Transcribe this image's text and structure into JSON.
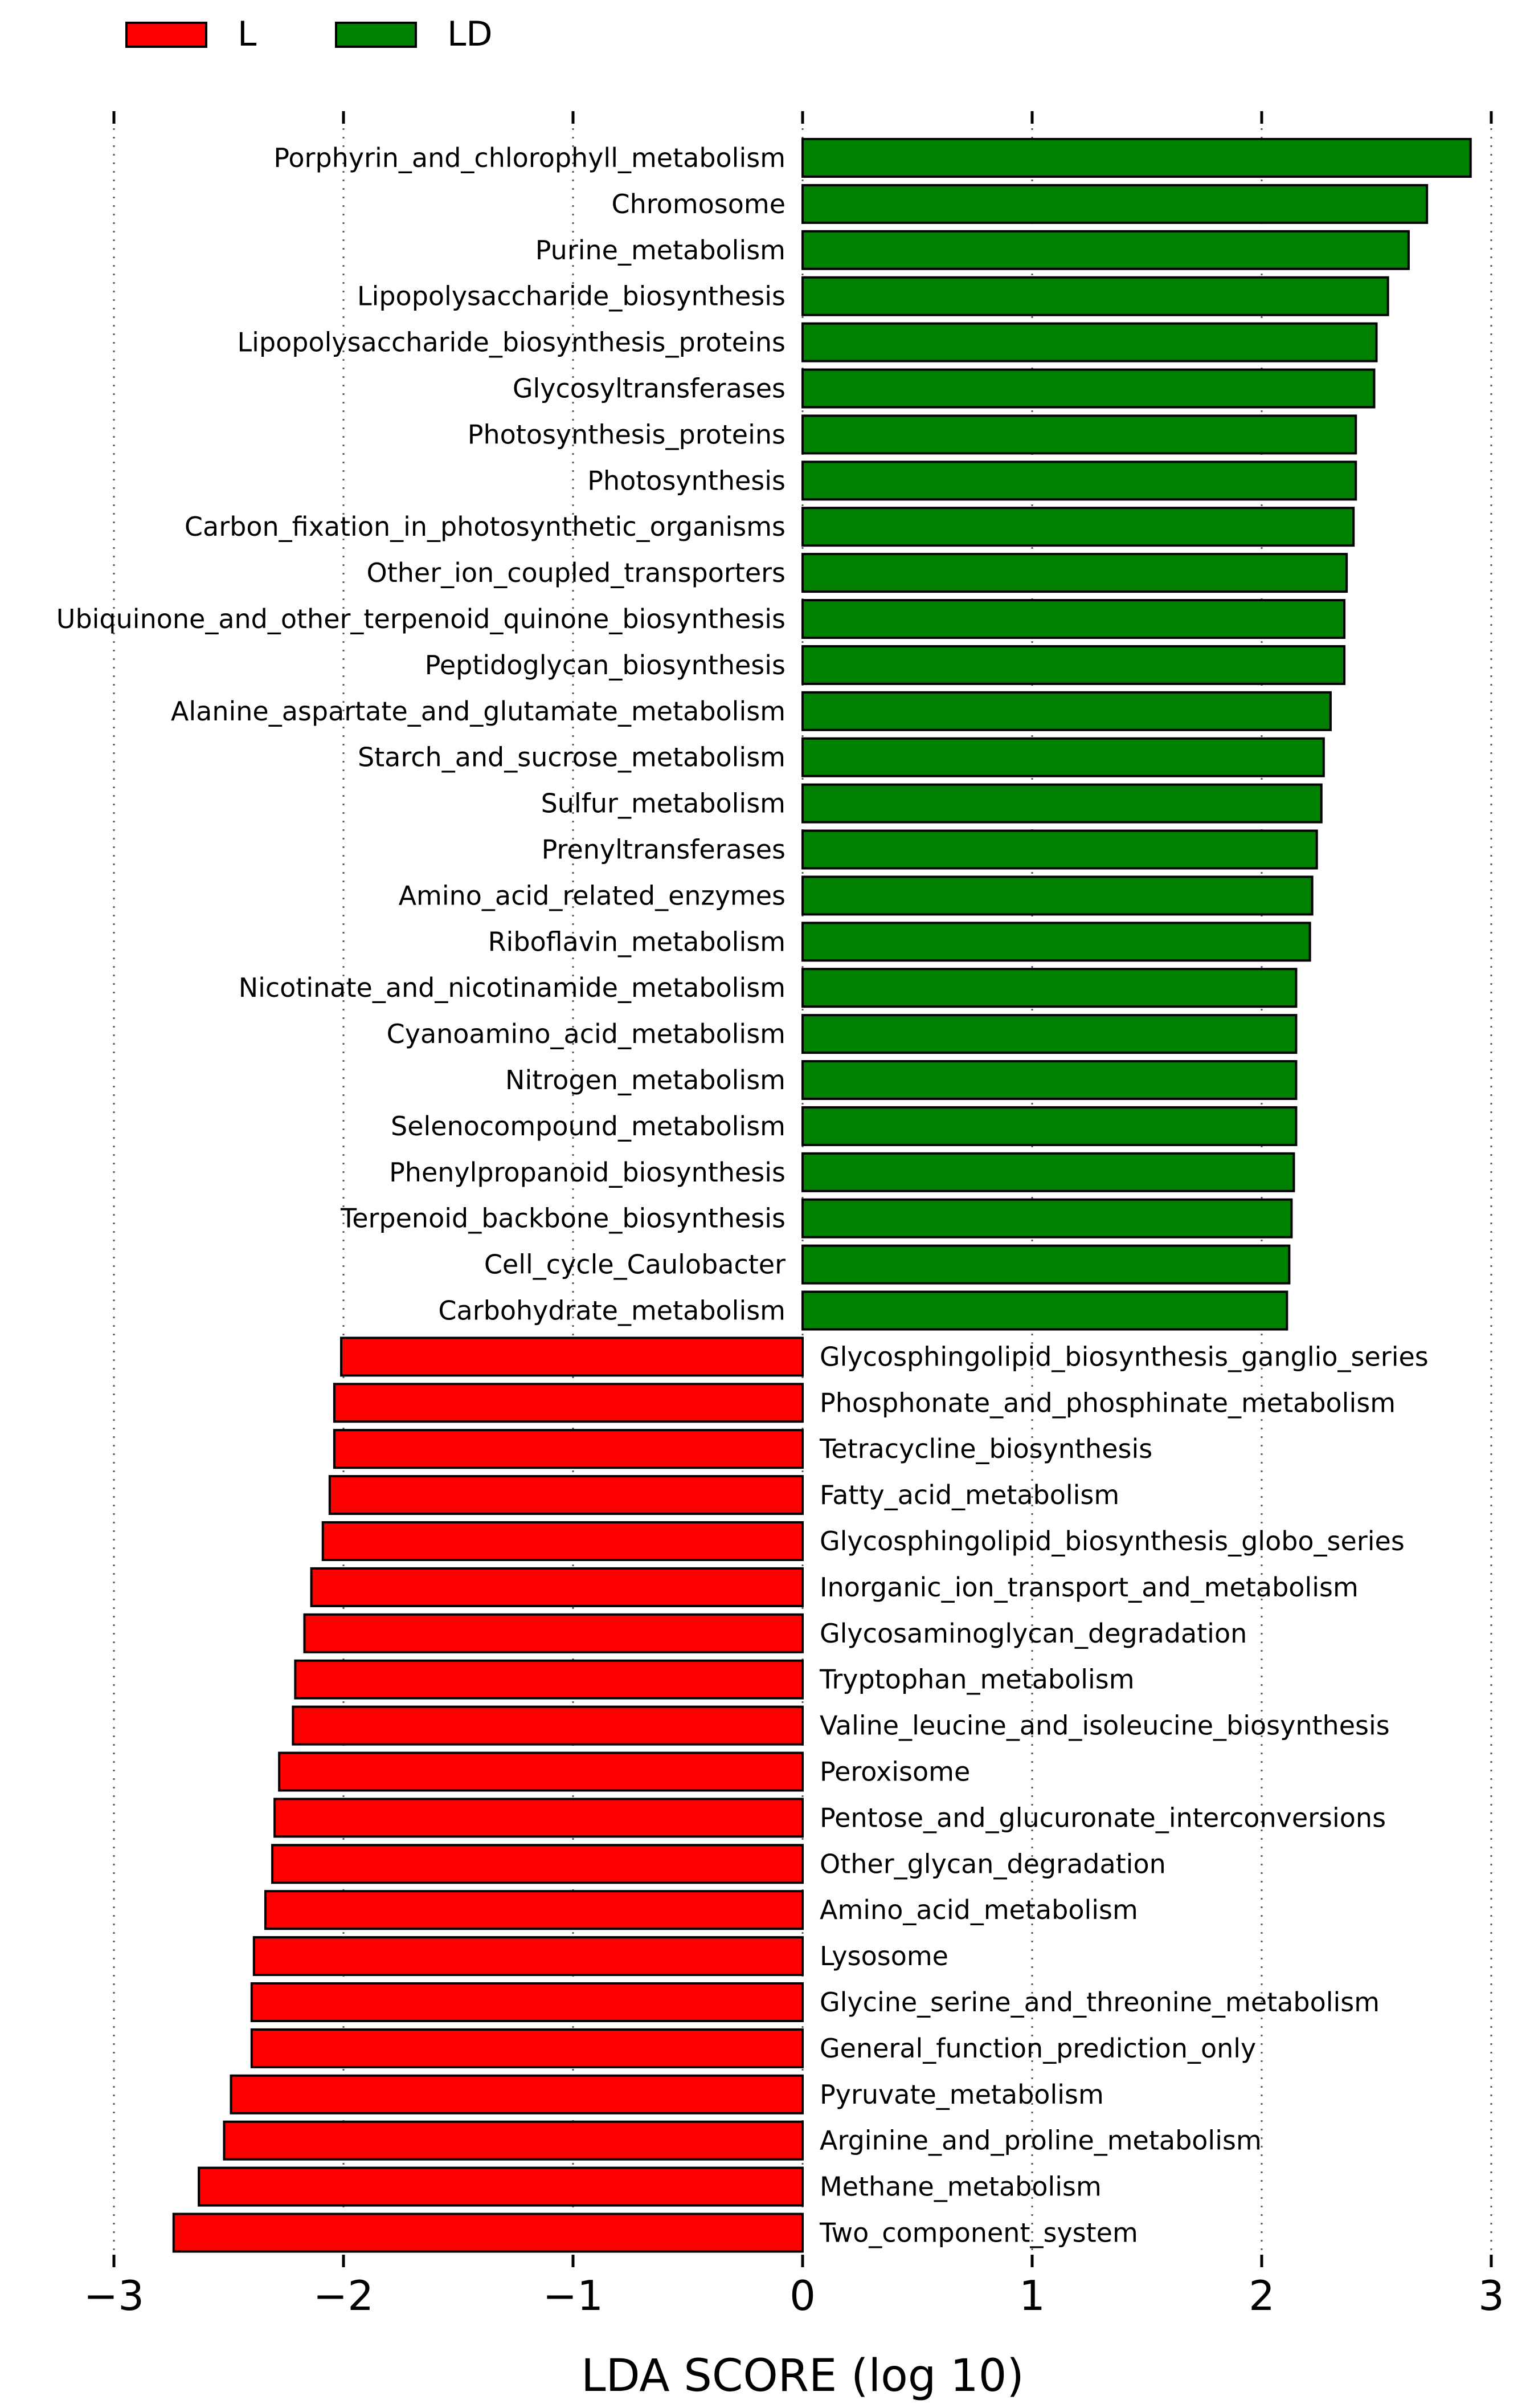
{
  "chart_data": {
    "type": "bar",
    "orientation": "horizontal",
    "xlabel": "LDA SCORE (log 10)",
    "xlim": [
      -3,
      3
    ],
    "xticks": [
      -3,
      -2,
      -1,
      0,
      1,
      2,
      3
    ],
    "xtick_labels": [
      "−3",
      "−2",
      "−1",
      "0",
      "1",
      "2",
      "3"
    ],
    "grid": "vertical dotted",
    "legend_placement": "top-left",
    "legend": [
      {
        "name": "L",
        "color": "#ff0000"
      },
      {
        "name": "LD",
        "color": "#008000"
      }
    ],
    "series": [
      {
        "name": "LD",
        "color": "#008000",
        "categories": [
          "Porphyrin_and_chlorophyll_metabolism",
          "Chromosome",
          "Purine_metabolism",
          "Lipopolysaccharide_biosynthesis",
          "Lipopolysaccharide_biosynthesis_proteins",
          "Glycosyltransferases",
          "Photosynthesis_proteins",
          "Photosynthesis",
          "Carbon_fixation_in_photosynthetic_organisms",
          "Other_ion_coupled_transporters",
          "Ubiquinone_and_other_terpenoid_quinone_biosynthesis",
          "Peptidoglycan_biosynthesis",
          "Alanine_aspartate_and_glutamate_metabolism",
          "Starch_and_sucrose_metabolism",
          "Sulfur_metabolism",
          "Prenyltransferases",
          "Amino_acid_related_enzymes",
          "Riboflavin_metabolism",
          "Nicotinate_and_nicotinamide_metabolism",
          "Cyanoamino_acid_metabolism",
          "Nitrogen_metabolism",
          "Selenocompound_metabolism",
          "Phenylpropanoid_biosynthesis",
          "Terpenoid_backbone_biosynthesis",
          "Cell_cycle_Caulobacter",
          "Carbohydrate_metabolism"
        ],
        "values": [
          2.91,
          2.72,
          2.64,
          2.55,
          2.5,
          2.49,
          2.41,
          2.41,
          2.4,
          2.37,
          2.36,
          2.36,
          2.3,
          2.27,
          2.26,
          2.24,
          2.22,
          2.21,
          2.15,
          2.15,
          2.15,
          2.15,
          2.14,
          2.13,
          2.12,
          2.11
        ]
      },
      {
        "name": "L",
        "color": "#ff0000",
        "categories": [
          "Glycosphingolipid_biosynthesis_ganglio_series",
          "Phosphonate_and_phosphinate_metabolism",
          "Tetracycline_biosynthesis",
          "Fatty_acid_metabolism",
          "Glycosphingolipid_biosynthesis_globo_series",
          "Inorganic_ion_transport_and_metabolism",
          "Glycosaminoglycan_degradation",
          "Tryptophan_metabolism",
          "Valine_leucine_and_isoleucine_biosynthesis",
          "Peroxisome",
          "Pentose_and_glucuronate_interconversions",
          "Other_glycan_degradation",
          "Amino_acid_metabolism",
          "Lysosome",
          "Glycine_serine_and_threonine_metabolism",
          "General_function_prediction_only",
          "Pyruvate_metabolism",
          "Arginine_and_proline_metabolism",
          "Methane_metabolism",
          "Two_component_system"
        ],
        "values": [
          -2.01,
          -2.04,
          -2.04,
          -2.06,
          -2.09,
          -2.14,
          -2.17,
          -2.21,
          -2.22,
          -2.28,
          -2.3,
          -2.31,
          -2.34,
          -2.39,
          -2.4,
          -2.4,
          -2.49,
          -2.52,
          -2.63,
          -2.74
        ]
      }
    ]
  }
}
